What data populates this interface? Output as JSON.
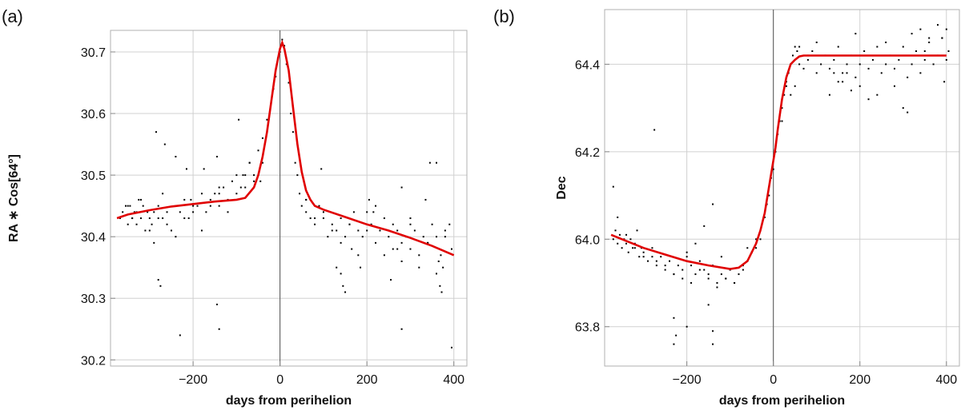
{
  "chart_data": [
    {
      "type": "scatter",
      "panel_label": "(a)",
      "xlabel": "days from perihelion",
      "ylabel": "RA ∗ Cos[64°]",
      "xlim": [
        -390,
        430
      ],
      "ylim": [
        30.19,
        30.735
      ],
      "xticks": [
        -200,
        0,
        200,
        400
      ],
      "xtick_labels": [
        "−200",
        "0",
        "200",
        "400"
      ],
      "yticks": [
        30.2,
        30.3,
        30.4,
        30.5,
        30.6,
        30.7
      ],
      "ytick_labels": [
        "30.2",
        "30.3",
        "30.4",
        "30.5",
        "30.6",
        "30.7"
      ],
      "grid": true,
      "vertical_line_x": 0,
      "fit_color": "#e00000",
      "fit_curve": {
        "x": [
          -375,
          -350,
          -300,
          -250,
          -200,
          -150,
          -100,
          -80,
          -60,
          -50,
          -40,
          -30,
          -20,
          -10,
          0,
          5,
          10,
          20,
          30,
          40,
          50,
          60,
          70,
          80,
          100,
          150,
          200,
          250,
          300,
          350,
          380,
          400
        ],
        "y": [
          30.43,
          30.436,
          30.443,
          30.449,
          30.453,
          30.457,
          30.46,
          30.463,
          30.48,
          30.5,
          30.53,
          30.57,
          30.62,
          30.67,
          30.705,
          30.715,
          30.705,
          30.67,
          30.61,
          30.55,
          30.505,
          30.475,
          30.46,
          30.45,
          30.444,
          30.432,
          30.42,
          30.41,
          30.398,
          30.385,
          30.376,
          30.37
        ]
      },
      "scatter_points": {
        "x": [
          -368,
          -362,
          -355,
          -350,
          -345,
          -340,
          -335,
          -330,
          -325,
          -320,
          -315,
          -310,
          -305,
          -300,
          -295,
          -290,
          -280,
          -270,
          -260,
          -250,
          -240,
          -230,
          -220,
          -210,
          -200,
          -190,
          -180,
          -170,
          -160,
          -150,
          -140,
          -130,
          -120,
          -110,
          -100,
          -90,
          -80,
          -70,
          -60,
          -50,
          -40,
          -30,
          -20,
          -15,
          -10,
          -5,
          0,
          5,
          10,
          15,
          20,
          25,
          30,
          35,
          40,
          45,
          50,
          60,
          70,
          80,
          90,
          100,
          110,
          120,
          130,
          140,
          150,
          160,
          170,
          180,
          190,
          200,
          210,
          220,
          230,
          240,
          250,
          260,
          270,
          280,
          290,
          300,
          310,
          320,
          330,
          340,
          350,
          360,
          370,
          380,
          390,
          -350,
          -340,
          -330,
          -320,
          -300,
          -290,
          -280,
          -270,
          -260,
          -240,
          -220,
          -200,
          -180,
          -160,
          -140,
          -120,
          -100,
          -80,
          -60,
          -40,
          60,
          80,
          100,
          120,
          140,
          160,
          180,
          200,
          220,
          240,
          260,
          280,
          300,
          320,
          340,
          360,
          380,
          -285,
          -265,
          -240,
          -215,
          -205,
          -175,
          -145,
          -140,
          -95,
          -85,
          -70,
          -45,
          60,
          95,
          130,
          140,
          145,
          150,
          165,
          185,
          205,
          215,
          255,
          270,
          280,
          300,
          335,
          345,
          360,
          365,
          368,
          372,
          375,
          395,
          -280,
          -275,
          -145,
          -140,
          -230
        ],
        "y": [
          30.43,
          30.44,
          30.45,
          30.42,
          30.45,
          30.43,
          30.44,
          30.42,
          30.46,
          30.43,
          30.45,
          30.41,
          30.44,
          30.43,
          30.42,
          30.44,
          30.45,
          30.43,
          30.44,
          30.41,
          30.45,
          30.44,
          30.46,
          30.43,
          30.44,
          30.45,
          30.47,
          30.44,
          30.46,
          30.47,
          30.45,
          30.48,
          30.46,
          30.49,
          30.47,
          30.48,
          30.5,
          30.52,
          30.5,
          30.54,
          30.56,
          30.59,
          30.62,
          30.64,
          30.66,
          30.69,
          30.7,
          30.72,
          30.71,
          30.68,
          30.65,
          30.6,
          30.57,
          30.52,
          30.5,
          30.47,
          30.45,
          30.44,
          30.43,
          30.42,
          30.45,
          30.43,
          30.4,
          30.42,
          30.41,
          30.43,
          30.4,
          30.42,
          30.44,
          30.41,
          30.4,
          30.41,
          30.42,
          30.39,
          30.41,
          30.43,
          30.4,
          30.38,
          30.41,
          30.39,
          30.4,
          30.38,
          30.41,
          30.37,
          30.4,
          30.39,
          30.42,
          30.4,
          30.37,
          30.41,
          30.42,
          30.45,
          30.43,
          30.44,
          30.46,
          30.41,
          30.39,
          30.43,
          30.47,
          30.42,
          30.4,
          30.43,
          30.45,
          30.41,
          30.45,
          30.48,
          30.44,
          30.5,
          30.48,
          30.49,
          30.52,
          30.46,
          30.43,
          30.44,
          30.41,
          30.39,
          30.42,
          30.37,
          30.44,
          30.45,
          30.37,
          30.42,
          30.36,
          30.43,
          30.35,
          30.39,
          30.34,
          30.4,
          30.57,
          30.55,
          30.53,
          30.51,
          30.46,
          30.51,
          30.53,
          30.47,
          30.59,
          30.5,
          30.52,
          30.49,
          30.46,
          30.51,
          30.35,
          30.34,
          30.32,
          30.31,
          30.38,
          30.35,
          30.46,
          30.44,
          30.33,
          30.38,
          30.48,
          30.42,
          30.46,
          30.52,
          30.52,
          30.36,
          30.32,
          30.31,
          30.35,
          30.38,
          30.33,
          30.32,
          30.29,
          30.25,
          30.24
        ],
        "extra_x": [
          280,
          395
        ],
        "extra_y": [
          30.25,
          30.22
        ]
      }
    },
    {
      "type": "scatter",
      "panel_label": "(b)",
      "xlabel": "days from perihelion",
      "ylabel": "Dec",
      "xlim": [
        -390,
        430
      ],
      "ylim": [
        63.71,
        64.525
      ],
      "xticks": [
        -200,
        0,
        200,
        400
      ],
      "xtick_labels": [
        "−200",
        "0",
        "200",
        "400"
      ],
      "yticks": [
        63.8,
        64.0,
        64.2,
        64.4
      ],
      "ytick_labels": [
        "63.8",
        "64.0",
        "64.2",
        "64.4"
      ],
      "grid": true,
      "vertical_line_x": 0,
      "fit_color": "#e00000",
      "fit_curve": {
        "x": [
          -375,
          -350,
          -300,
          -250,
          -200,
          -150,
          -100,
          -80,
          -60,
          -40,
          -30,
          -20,
          -10,
          0,
          5,
          10,
          20,
          30,
          40,
          50,
          60,
          70,
          80,
          100,
          150,
          200,
          250,
          300,
          350,
          400
        ],
        "y": [
          64.01,
          64.0,
          63.98,
          63.965,
          63.95,
          63.94,
          63.932,
          63.935,
          63.95,
          63.99,
          64.02,
          64.06,
          64.12,
          64.18,
          64.21,
          64.25,
          64.32,
          64.37,
          64.4,
          64.41,
          64.418,
          64.42,
          64.42,
          64.42,
          64.42,
          64.42,
          64.42,
          64.42,
          64.42,
          64.42
        ]
      },
      "scatter_points": {
        "x": [
          -370,
          -365,
          -360,
          -355,
          -350,
          -345,
          -340,
          -335,
          -330,
          -325,
          -320,
          -315,
          -310,
          -305,
          -300,
          -290,
          -280,
          -270,
          -260,
          -250,
          -240,
          -230,
          -220,
          -210,
          -200,
          -190,
          -180,
          -170,
          -160,
          -150,
          -140,
          -130,
          -120,
          -110,
          -100,
          -90,
          -80,
          -70,
          -60,
          -50,
          -40,
          -30,
          -20,
          -15,
          -10,
          -5,
          0,
          5,
          10,
          15,
          20,
          25,
          30,
          35,
          40,
          45,
          50,
          55,
          60,
          70,
          80,
          90,
          100,
          110,
          120,
          130,
          140,
          150,
          160,
          170,
          180,
          190,
          200,
          210,
          220,
          230,
          240,
          250,
          260,
          270,
          280,
          290,
          300,
          310,
          320,
          330,
          340,
          350,
          360,
          370,
          380,
          390,
          400,
          -360,
          -340,
          -320,
          -300,
          -270,
          -250,
          -230,
          -210,
          -190,
          -170,
          -150,
          -130,
          -110,
          -90,
          -70,
          -50,
          60,
          80,
          100,
          140,
          160,
          180,
          200,
          220,
          260,
          300,
          320,
          340,
          360,
          380,
          400,
          -370,
          -280,
          -230,
          -225,
          -200,
          -180,
          -160,
          -150,
          -140,
          -120,
          -60,
          -40,
          20,
          30,
          40,
          50,
          130,
          150,
          170,
          190,
          240,
          280,
          310,
          350,
          390,
          395,
          405
        ],
        "y": [
          64.0,
          64.02,
          63.99,
          64.01,
          63.98,
          64.0,
          64.01,
          63.97,
          64.0,
          63.98,
          63.99,
          64.02,
          63.96,
          63.98,
          63.97,
          63.95,
          63.96,
          63.94,
          63.96,
          63.93,
          63.95,
          63.92,
          63.94,
          63.93,
          63.96,
          63.94,
          63.92,
          63.95,
          63.93,
          63.91,
          63.94,
          63.9,
          63.92,
          63.91,
          63.93,
          63.9,
          63.92,
          63.94,
          63.95,
          63.97,
          63.98,
          64.0,
          64.05,
          64.08,
          64.1,
          64.14,
          64.16,
          64.2,
          64.24,
          64.27,
          64.3,
          64.33,
          64.36,
          64.38,
          64.4,
          64.42,
          64.44,
          64.43,
          64.4,
          64.39,
          64.41,
          64.43,
          64.38,
          64.4,
          64.42,
          64.39,
          64.41,
          64.44,
          64.38,
          64.4,
          64.42,
          64.37,
          64.4,
          64.43,
          64.39,
          64.41,
          64.44,
          64.38,
          64.4,
          64.42,
          64.39,
          64.41,
          64.44,
          64.37,
          64.4,
          64.43,
          64.38,
          64.41,
          64.45,
          64.4,
          64.42,
          64.46,
          64.41,
          64.05,
          63.99,
          63.98,
          63.96,
          63.95,
          63.94,
          63.92,
          63.91,
          63.9,
          63.93,
          63.92,
          63.89,
          63.91,
          63.9,
          63.93,
          63.97,
          64.44,
          64.42,
          64.45,
          64.38,
          64.36,
          64.34,
          64.35,
          64.32,
          64.45,
          64.3,
          64.47,
          64.48,
          64.46,
          64.49,
          64.48,
          64.12,
          63.98,
          63.82,
          63.78,
          63.97,
          63.99,
          64.03,
          63.85,
          64.08,
          63.96,
          63.98,
          64.0,
          64.27,
          64.35,
          64.33,
          64.35,
          64.33,
          64.36,
          64.38,
          64.47,
          64.33,
          64.35,
          64.29,
          64.43,
          64.46,
          64.36,
          64.43
        ],
        "extra_x": [
          -275,
          -230,
          -200,
          -140,
          -140
        ],
        "extra_y": [
          64.25,
          63.76,
          63.8,
          63.76,
          63.79
        ]
      }
    }
  ]
}
